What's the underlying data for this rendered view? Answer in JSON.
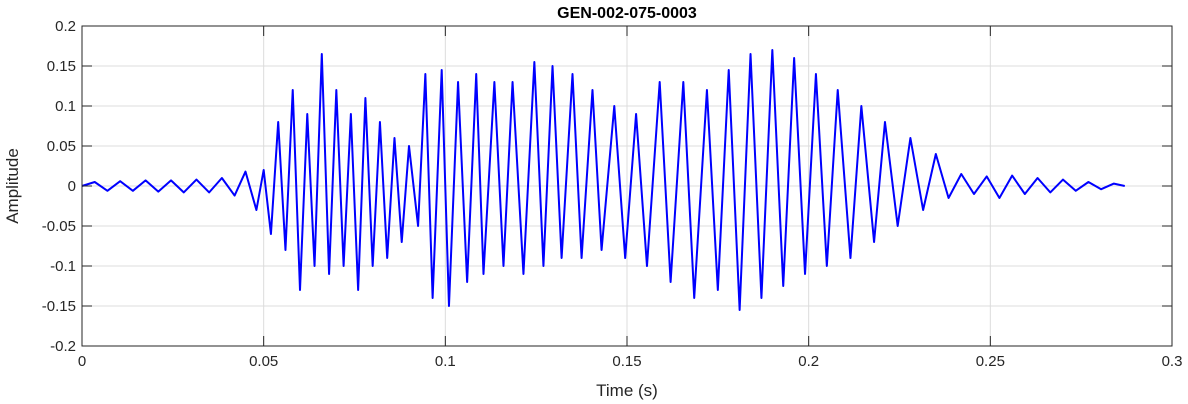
{
  "chart_data": {
    "type": "line",
    "title": "GEN-002-075-0003",
    "xlabel": "Time (s)",
    "ylabel": "Amplitude",
    "xlim": [
      0,
      0.3
    ],
    "ylim": [
      -0.2,
      0.2
    ],
    "x_ticks": [
      0,
      0.05,
      0.1,
      0.15,
      0.2,
      0.25,
      0.3
    ],
    "y_ticks": [
      -0.2,
      -0.15,
      -0.1,
      -0.05,
      0,
      0.05,
      0.1,
      0.15,
      0.2
    ],
    "x_tick_labels": [
      "0",
      "0.05",
      "0.1",
      "0.15",
      "0.2",
      "0.25",
      "0.3"
    ],
    "y_tick_labels": [
      "-0.2",
      "-0.15",
      "-0.1",
      "-0.05",
      "0",
      "0.05",
      "0.1",
      "0.15",
      "0.2"
    ],
    "grid": true,
    "line_color": "#0000ff",
    "series": [
      {
        "x": [
          0,
          0.0035,
          0.007,
          0.0105,
          0.014,
          0.0175,
          0.021,
          0.0245,
          0.028,
          0.0315,
          0.035,
          0.0385,
          0.042,
          0.045,
          0.048,
          0.05,
          0.052,
          0.054,
          0.056,
          0.058,
          0.06,
          0.062,
          0.064,
          0.066,
          0.068,
          0.07,
          0.072,
          0.074,
          0.076,
          0.078,
          0.08,
          0.082,
          0.084,
          0.086,
          0.088,
          0.09,
          0.0925,
          0.0945,
          0.0965,
          0.099,
          0.101,
          0.1035,
          0.106,
          0.1085,
          0.1105,
          0.1135,
          0.116,
          0.1185,
          0.1215,
          0.1245,
          0.127,
          0.1295,
          0.132,
          0.135,
          0.1375,
          0.1405,
          0.143,
          0.1465,
          0.1495,
          0.1525,
          0.1555,
          0.159,
          0.162,
          0.1655,
          0.1685,
          0.172,
          0.175,
          0.178,
          0.181,
          0.184,
          0.187,
          0.19,
          0.193,
          0.196,
          0.199,
          0.202,
          0.205,
          0.208,
          0.2115,
          0.2145,
          0.218,
          0.221,
          0.2245,
          0.228,
          0.2315,
          0.235,
          0.2385,
          0.242,
          0.2455,
          0.249,
          0.2525,
          0.256,
          0.2595,
          0.263,
          0.2665,
          0.27,
          0.2735,
          0.277,
          0.2805,
          0.284,
          0.287
        ],
        "y": [
          0.0,
          0.005,
          -0.006,
          0.006,
          -0.006,
          0.007,
          -0.007,
          0.007,
          -0.008,
          0.008,
          -0.008,
          0.01,
          -0.012,
          0.018,
          -0.03,
          0.02,
          -0.06,
          0.08,
          -0.08,
          0.12,
          -0.13,
          0.09,
          -0.1,
          0.165,
          -0.11,
          0.12,
          -0.1,
          0.09,
          -0.13,
          0.11,
          -0.1,
          0.08,
          -0.09,
          0.06,
          -0.07,
          0.05,
          -0.05,
          0.14,
          -0.14,
          0.145,
          -0.15,
          0.13,
          -0.12,
          0.14,
          -0.11,
          0.13,
          -0.1,
          0.13,
          -0.11,
          0.155,
          -0.1,
          0.15,
          -0.09,
          0.14,
          -0.09,
          0.12,
          -0.08,
          0.1,
          -0.09,
          0.09,
          -0.1,
          0.13,
          -0.12,
          0.13,
          -0.14,
          0.12,
          -0.13,
          0.145,
          -0.155,
          0.165,
          -0.14,
          0.17,
          -0.125,
          0.16,
          -0.11,
          0.14,
          -0.1,
          0.12,
          -0.09,
          0.1,
          -0.07,
          0.08,
          -0.05,
          0.06,
          -0.03,
          0.04,
          -0.015,
          0.015,
          -0.01,
          0.012,
          -0.015,
          0.013,
          -0.01,
          0.01,
          -0.008,
          0.008,
          -0.006,
          0.005,
          -0.004,
          0.003,
          0.0
        ]
      }
    ]
  }
}
